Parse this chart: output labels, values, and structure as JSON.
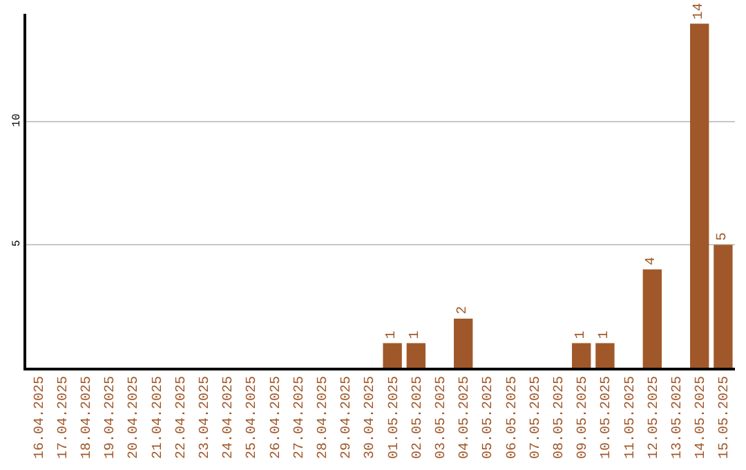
{
  "chart_data": {
    "type": "bar",
    "categories": [
      "16.04.2025",
      "17.04.2025",
      "18.04.2025",
      "19.04.2025",
      "20.04.2025",
      "21.04.2025",
      "22.04.2025",
      "23.04.2025",
      "24.04.2025",
      "25.04.2025",
      "26.04.2025",
      "27.04.2025",
      "28.04.2025",
      "29.04.2025",
      "30.04.2025",
      "01.05.2025",
      "02.05.2025",
      "03.05.2025",
      "04.05.2025",
      "05.05.2025",
      "06.05.2025",
      "07.05.2025",
      "08.05.2025",
      "09.05.2025",
      "10.05.2025",
      "11.05.2025",
      "12.05.2025",
      "13.05.2025",
      "14.05.2025",
      "15.05.2025"
    ],
    "values": [
      0,
      0,
      0,
      0,
      0,
      0,
      0,
      0,
      0,
      0,
      0,
      0,
      0,
      0,
      0,
      1,
      1,
      0,
      2,
      0,
      0,
      0,
      0,
      1,
      1,
      0,
      4,
      0,
      14,
      5
    ],
    "value_labels": [
      null,
      null,
      null,
      null,
      null,
      null,
      null,
      null,
      null,
      null,
      null,
      null,
      null,
      null,
      null,
      "1",
      "1",
      null,
      "2",
      null,
      null,
      null,
      null,
      "1",
      "1",
      null,
      "4",
      null,
      "14",
      "5"
    ],
    "color": "#a0582a",
    "ylim": [
      0,
      14.4
    ],
    "yticks": [
      5,
      10
    ],
    "grid": "y"
  }
}
